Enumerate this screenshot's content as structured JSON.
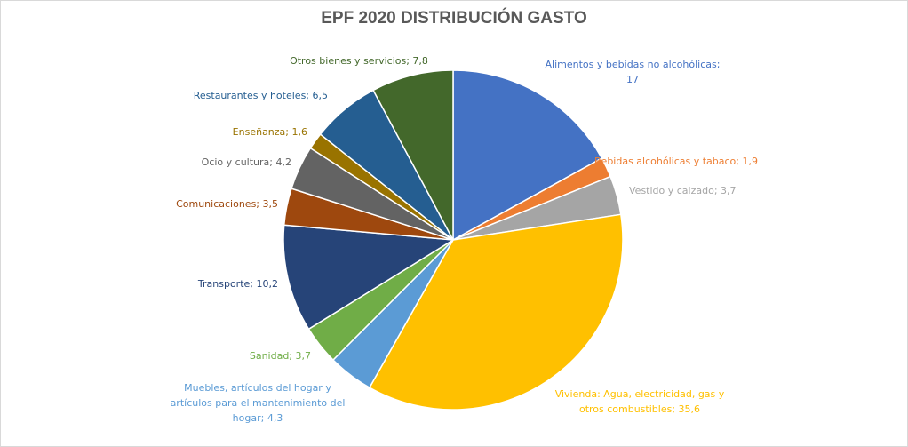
{
  "chart_data": {
    "type": "pie",
    "title": "EPF 2020 DISTRIBUCIÓN GASTO",
    "slices": [
      {
        "label": "Alimentos y bebidas no alcohólicas;",
        "value_label": "17",
        "value": 17,
        "color": "#4472c4"
      },
      {
        "label": "Bebidas alcohólicas y tabaco;",
        "value_label": "1,9",
        "value": 1.9,
        "color": "#ed7d31"
      },
      {
        "label": "Vestido y calzado;",
        "value_label": "3,7",
        "value": 3.7,
        "color": "#a5a5a5"
      },
      {
        "label": "Vivienda: Agua, electricidad, gas y otros combustibles;",
        "value_label": "35,6",
        "value": 35.6,
        "color": "#ffc000"
      },
      {
        "label": "Muebles, artículos del hogar y artículos para el mantenimiento del hogar;",
        "value_label": "4,3",
        "value": 4.3,
        "color": "#5b9bd5"
      },
      {
        "label": "Sanidad;",
        "value_label": "3,7",
        "value": 3.7,
        "color": "#70ad47"
      },
      {
        "label": "Transporte;",
        "value_label": "10,2",
        "value": 10.2,
        "color": "#264478"
      },
      {
        "label": "Comunicaciones;",
        "value_label": "3,5",
        "value": 3.5,
        "color": "#9e480e"
      },
      {
        "label": "Ocio y cultura;",
        "value_label": "4,2",
        "value": 4.2,
        "color": "#636363"
      },
      {
        "label": "Enseñanza;",
        "value_label": "1,6",
        "value": 1.6,
        "color": "#997300"
      },
      {
        "label": "Restaurantes y hoteles;",
        "value_label": "6,5",
        "value": 6.5,
        "color": "#255e91"
      },
      {
        "label": "Otros bienes y servicios;",
        "value_label": "7,8",
        "value": 7.8,
        "color": "#43682b"
      }
    ]
  }
}
